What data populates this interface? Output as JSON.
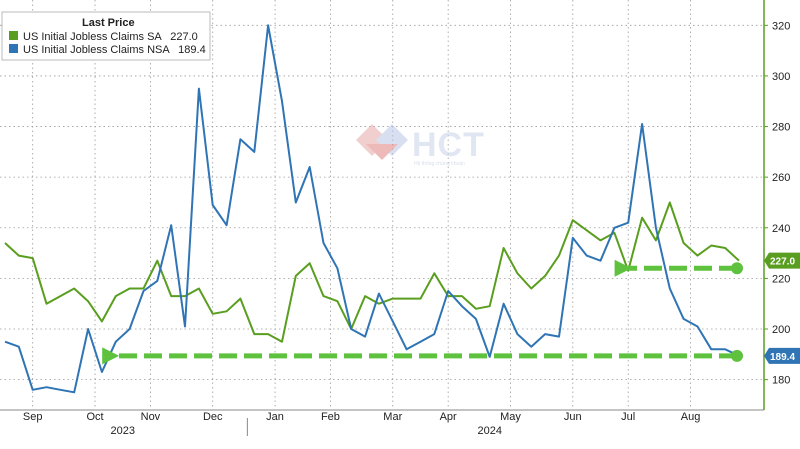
{
  "chart_data": {
    "type": "line",
    "legend": {
      "title": "Last Price",
      "placement": "top-left"
    },
    "series": [
      {
        "name": "US Initial Jobless Claims SA",
        "last_value_label": "227.0",
        "badge_label": "227.0",
        "color": "#5a9e1f",
        "values": [
          234,
          229,
          228,
          210,
          213,
          216,
          211,
          203,
          213,
          216,
          216,
          227,
          213,
          213,
          216,
          206,
          207,
          212,
          198,
          198,
          195,
          221,
          226,
          213,
          211,
          200,
          213,
          210,
          212,
          212,
          212,
          222,
          213,
          213,
          208,
          209,
          232,
          222,
          216,
          221,
          229,
          243,
          239,
          235,
          238,
          223,
          244,
          235,
          250,
          234,
          229,
          233,
          232,
          227
        ]
      },
      {
        "name": "US Initial Jobless Claims NSA",
        "last_value_label": "189.4",
        "badge_label": "189.4",
        "color": "#2f74b4",
        "values": [
          195,
          193,
          176,
          177,
          176,
          175,
          200,
          183,
          195,
          200,
          215,
          219,
          241,
          201,
          295,
          249,
          241,
          275,
          270,
          320,
          290,
          250,
          264,
          234,
          224,
          200,
          197,
          214,
          203,
          192,
          195,
          198,
          215,
          209,
          204,
          189,
          210,
          198,
          193,
          198,
          197,
          236,
          229,
          227,
          240,
          242,
          281,
          240,
          216,
          204,
          201,
          192,
          192,
          189.4
        ]
      }
    ],
    "y_ticks": [
      180,
      200,
      220,
      240,
      260,
      280,
      300,
      320
    ],
    "ylim": [
      168,
      330
    ],
    "x_month_labels": [
      "Sep",
      "Oct",
      "Nov",
      "Dec",
      "Jan",
      "Feb",
      "Mar",
      "Apr",
      "May",
      "Jun",
      "Jul",
      "Aug"
    ],
    "x_month_positions": [
      2,
      6.5,
      10.5,
      15,
      19.5,
      23.5,
      28,
      32,
      36.5,
      41,
      45,
      49.5
    ],
    "x_year_labels": [
      "2023",
      "2024"
    ],
    "x_year_positions": [
      8.5,
      35
    ],
    "year_divider_position": 17.5,
    "grid": true,
    "y_axis_side": "right",
    "annotations": [
      {
        "type": "dashed-arrow",
        "color": "#5ec23e",
        "y": 224,
        "from_x": 53,
        "to_x": 45
      },
      {
        "type": "dashed-arrow",
        "color": "#5ec23e",
        "y": 189.4,
        "from_x": 53,
        "to_x": 8
      }
    ]
  },
  "watermark": {
    "text": "HCT",
    "subtext": "Hệ thống chứng khoán"
  }
}
